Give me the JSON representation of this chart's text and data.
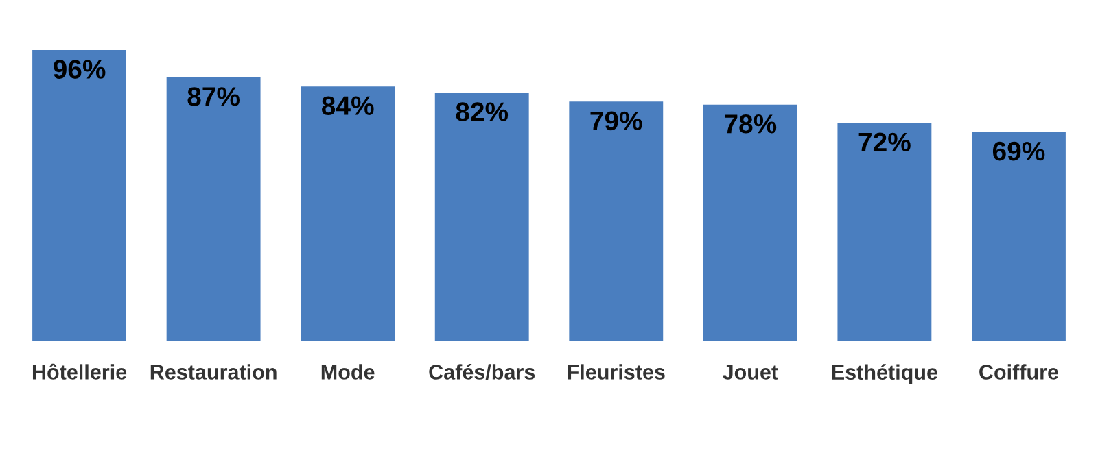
{
  "chart_data": {
    "type": "bar",
    "categories": [
      "Hôtellerie",
      "Restauration",
      "Mode",
      "Cafés/bars",
      "Fleuristes",
      "Jouet",
      "Esthétique",
      "Coiffure"
    ],
    "values": [
      96,
      87,
      84,
      82,
      79,
      78,
      72,
      69
    ],
    "value_labels": [
      "96%",
      "87%",
      "84%",
      "82%",
      "79%",
      "78%",
      "72%",
      "69%"
    ],
    "color": "#4a7ebf",
    "grid": false,
    "legend": false
  }
}
